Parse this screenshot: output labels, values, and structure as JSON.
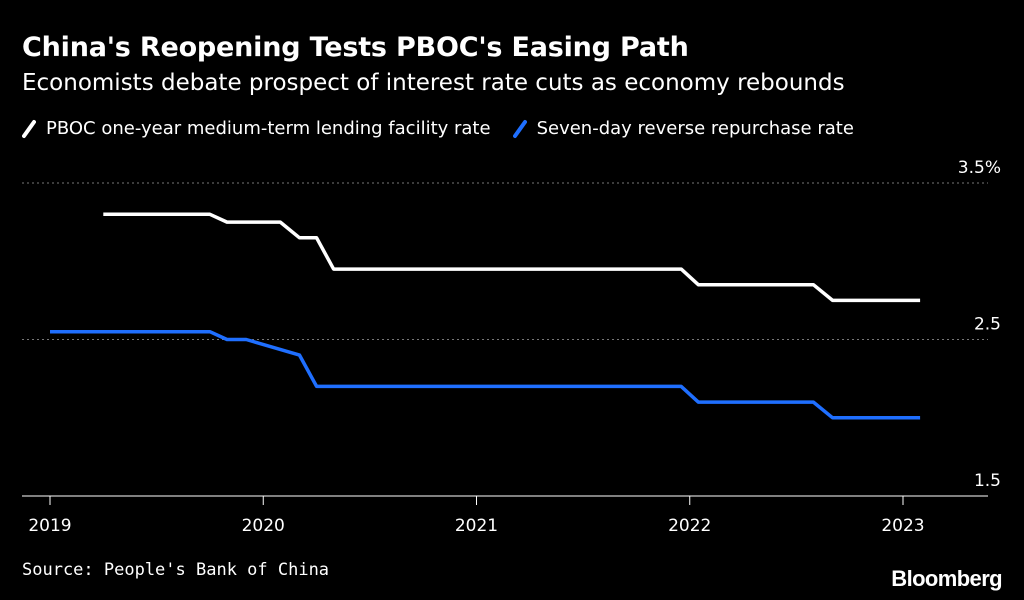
{
  "header": {
    "title": "China's Reopening Tests PBOC's Easing Path",
    "subtitle": "Economists debate prospect of interest rate cuts as economy rebounds"
  },
  "colors": {
    "background": "#000000",
    "mlf": "#ffffff",
    "reverse_repo": "#1f6fff",
    "grid": "#777777"
  },
  "chart_data": {
    "type": "line",
    "title": "China's Reopening Tests PBOC's Easing Path",
    "subtitle": "Economists debate prospect of interest rate cuts as economy rebounds",
    "xlabel": "",
    "ylabel": "",
    "xlim": [
      2019.0,
      2023.2
    ],
    "ylim": [
      1.5,
      3.5
    ],
    "yticks": [
      {
        "value": 3.5,
        "label": "3.5%"
      },
      {
        "value": 2.5,
        "label": "2.5"
      },
      {
        "value": 1.5,
        "label": "1.5"
      }
    ],
    "xticks": [
      {
        "value": 2019,
        "label": "2019"
      },
      {
        "value": 2020,
        "label": "2020"
      },
      {
        "value": 2021,
        "label": "2021"
      },
      {
        "value": 2022,
        "label": "2022"
      },
      {
        "value": 2023,
        "label": "2023"
      }
    ],
    "grid": true,
    "legend_position": "top",
    "series": [
      {
        "name": "PBOC one-year medium-term lending facility rate",
        "color": "#ffffff",
        "points": [
          [
            2019.25,
            3.3
          ],
          [
            2019.75,
            3.3
          ],
          [
            2019.83,
            3.25
          ],
          [
            2020.08,
            3.25
          ],
          [
            2020.17,
            3.15
          ],
          [
            2020.25,
            3.15
          ],
          [
            2020.33,
            2.95
          ],
          [
            2021.96,
            2.95
          ],
          [
            2022.04,
            2.85
          ],
          [
            2022.58,
            2.85
          ],
          [
            2022.67,
            2.75
          ],
          [
            2023.08,
            2.75
          ]
        ]
      },
      {
        "name": "Seven-day reverse repurchase rate",
        "color": "#1f6fff",
        "points": [
          [
            2019.0,
            2.55
          ],
          [
            2019.75,
            2.55
          ],
          [
            2019.83,
            2.5
          ],
          [
            2019.92,
            2.5
          ],
          [
            2020.17,
            2.4
          ],
          [
            2020.25,
            2.2
          ],
          [
            2021.96,
            2.2
          ],
          [
            2022.04,
            2.1
          ],
          [
            2022.58,
            2.1
          ],
          [
            2022.67,
            2.0
          ],
          [
            2023.08,
            2.0
          ]
        ]
      }
    ]
  },
  "footer": {
    "source": "Source: People's Bank of China",
    "logo": "Bloomberg"
  }
}
